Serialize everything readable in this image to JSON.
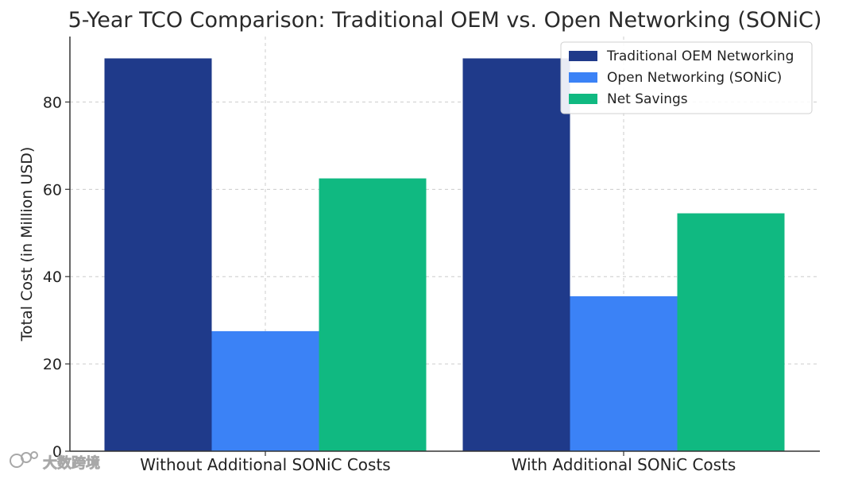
{
  "chart_data": {
    "type": "bar",
    "title": "5-Year TCO Comparison: Traditional OEM vs. Open Networking (SONiC)",
    "xlabel": "",
    "ylabel": "Total Cost (in Million USD)",
    "ylim": [
      0,
      95
    ],
    "yticks": [
      0,
      20,
      40,
      60,
      80
    ],
    "grid": true,
    "legend_position": "top-right",
    "categories": [
      "Without Additional SONiC Costs",
      "With Additional SONiC Costs"
    ],
    "series": [
      {
        "name": "Traditional OEM Networking",
        "color": "#1f3a8a",
        "values": [
          90,
          90
        ]
      },
      {
        "name": "Open Networking (SONiC)",
        "color": "#3b82f6",
        "values": [
          27.5,
          35.5
        ]
      },
      {
        "name": "Net Savings",
        "color": "#10b981",
        "values": [
          62.5,
          54.5
        ]
      }
    ]
  },
  "watermark": {
    "text": "大数跨境",
    "icon": "logo-mark-icon"
  }
}
